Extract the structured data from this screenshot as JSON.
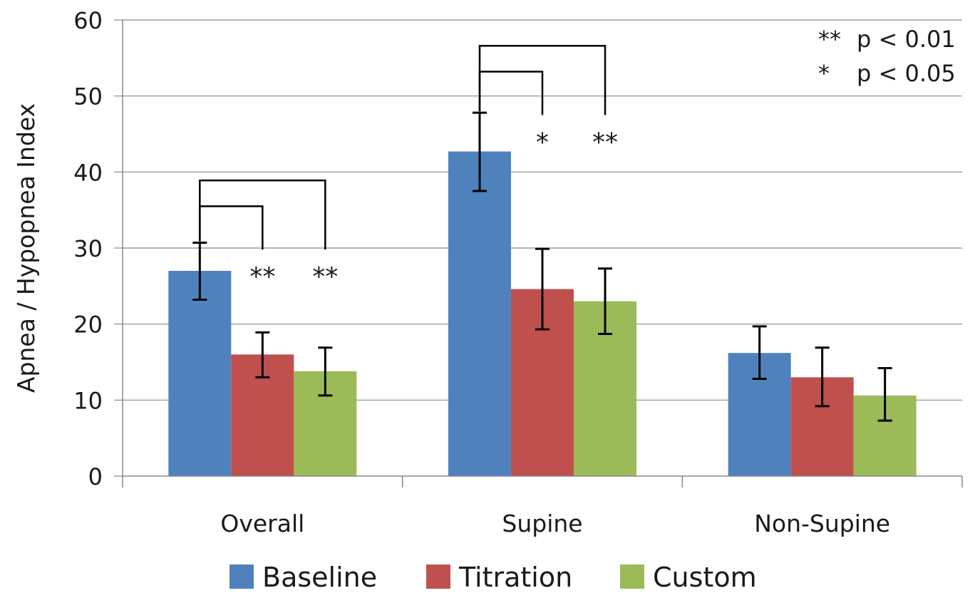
{
  "chart_data": {
    "type": "bar",
    "categories": [
      "Overall",
      "Supine",
      "Non-Supine"
    ],
    "series": [
      {
        "name": "Baseline",
        "color": "#4F81BD",
        "values": [
          27.0,
          42.7,
          16.2
        ],
        "err_low": [
          23.2,
          37.5,
          12.8
        ],
        "err_high": [
          30.7,
          47.8,
          19.7
        ]
      },
      {
        "name": "Titration",
        "color": "#C0504D",
        "values": [
          16.0,
          24.6,
          13.0
        ],
        "err_low": [
          13.0,
          19.3,
          9.2
        ],
        "err_high": [
          18.9,
          29.9,
          16.9
        ]
      },
      {
        "name": "Custom",
        "color": "#9BBB59",
        "values": [
          13.8,
          23.0,
          10.6
        ],
        "err_low": [
          10.6,
          18.7,
          7.3
        ],
        "err_high": [
          16.9,
          27.3,
          14.2
        ]
      }
    ],
    "ylabel": "Apnea / Hypopnea Index",
    "ylim": [
      0,
      60
    ],
    "yticks": [
      "0",
      "10",
      "20",
      "30",
      "40",
      "50",
      "60"
    ],
    "grid": true,
    "legend_position": "bottom",
    "significance": [
      {
        "category": 0,
        "from": 0,
        "to": 1,
        "marker": "**",
        "level": 35.5
      },
      {
        "category": 0,
        "from": 0,
        "to": 2,
        "marker": "**",
        "level": 38.9
      },
      {
        "category": 1,
        "from": 0,
        "to": 1,
        "marker": "*",
        "level": 53.2
      },
      {
        "category": 1,
        "from": 0,
        "to": 2,
        "marker": "**",
        "level": 56.6
      }
    ],
    "significance_key": [
      {
        "symbol": "**",
        "text": "p < 0.01"
      },
      {
        "symbol": "*",
        "text": "p < 0.05"
      }
    ]
  }
}
